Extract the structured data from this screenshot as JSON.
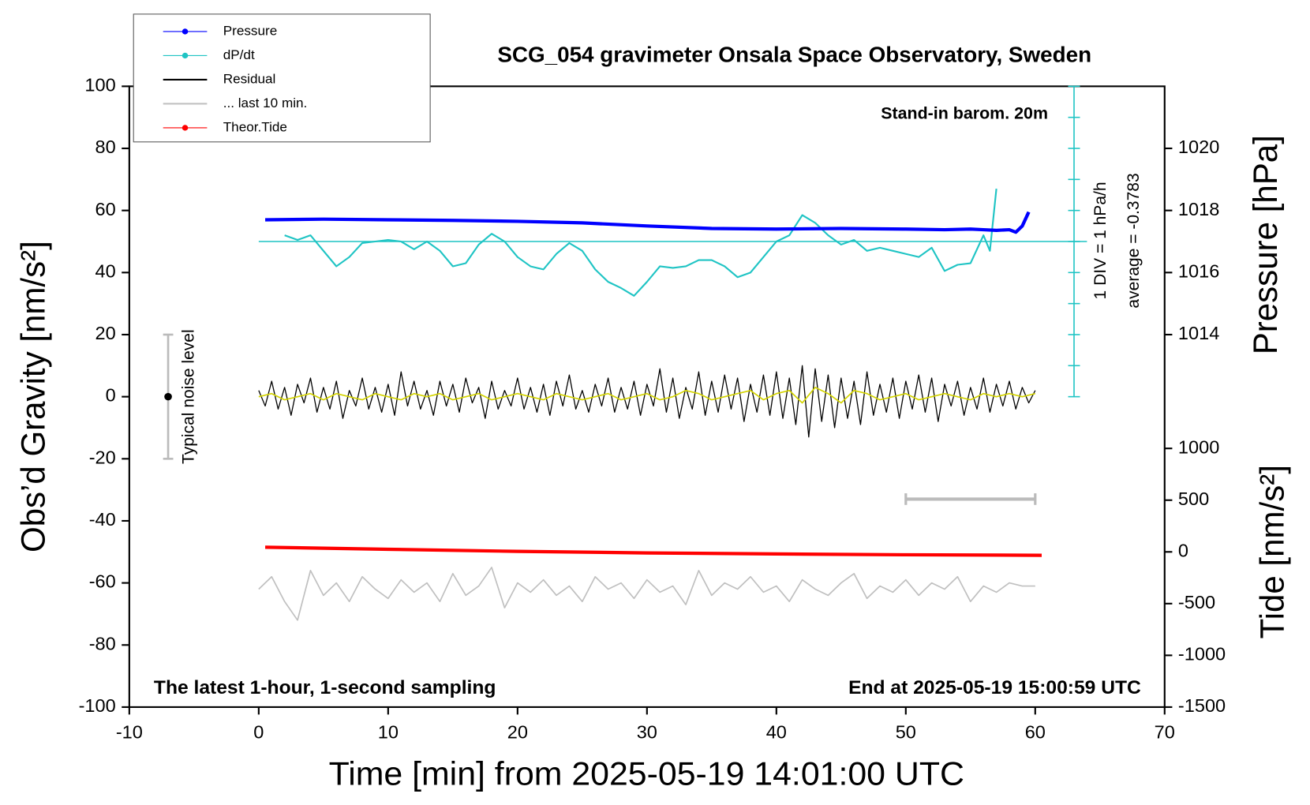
{
  "chart_data": {
    "type": "line",
    "title": "SCG_054 gravimeter Onsala Space Observatory, Sweden",
    "xlabel": "Time [min] from 2025-05-19 14:01:00 UTC",
    "ylabel": "Obs’d Gravity [nm/s²]",
    "y2label": "Pressure [hPa]",
    "y3label": "Tide [nm/s²]",
    "annotations": {
      "barometer": "Stand-in barom. 20m",
      "div": "1 DIV = 1 hPa/h",
      "average": "average = -0.3783",
      "sampling": "The latest 1-hour, 1-second sampling",
      "end": "End at 2025-05-19 15:00:59 UTC",
      "noise": "Typical noise level"
    },
    "xlim": [
      -10,
      70
    ],
    "xticks": [
      -10,
      0,
      10,
      20,
      30,
      40,
      50,
      60,
      70
    ],
    "ylim": [
      -100,
      100
    ],
    "yticks": [
      -100,
      -80,
      -60,
      -40,
      -20,
      0,
      20,
      40,
      60,
      80,
      100
    ],
    "y2lim": [
      1002,
      1022
    ],
    "y2ticks": [
      1014,
      1016,
      1018,
      1020
    ],
    "y3lim": [
      -1500,
      4500
    ],
    "y3ticks": [
      -1500,
      -1000,
      -500,
      0,
      500,
      1000
    ],
    "legend": "upper left",
    "noise_bar": {
      "x": -7,
      "range": [
        -20,
        20
      ],
      "center": 0
    },
    "scale_bar": {
      "x": [
        50,
        60
      ],
      "y": -33
    },
    "dpdt_axis": {
      "x": 63,
      "ticks": [
        0,
        10,
        20,
        30,
        40,
        50,
        60,
        70,
        80,
        90,
        100
      ],
      "baseline": 50,
      "baseline_x": [
        0,
        64
      ],
      "color": "#1fc4c4"
    },
    "series": [
      {
        "name": "Pressure",
        "color": "#0000ff",
        "marker": true,
        "axis": "y2",
        "width": 4,
        "x": [
          0.5,
          5,
          10,
          15,
          20,
          25,
          30,
          35,
          40,
          45,
          50,
          53,
          55,
          56,
          57,
          58,
          58.5,
          59,
          59.5
        ],
        "values": [
          1017.7,
          1017.72,
          1017.7,
          1017.68,
          1017.65,
          1017.6,
          1017.5,
          1017.42,
          1017.4,
          1017.42,
          1017.4,
          1017.38,
          1017.4,
          1017.38,
          1017.36,
          1017.38,
          1017.3,
          1017.5,
          1017.95
        ]
      },
      {
        "name": "dP/dt",
        "color": "#1fc4c4",
        "marker": true,
        "width": 2,
        "x": [
          2,
          3,
          4,
          5,
          6,
          7,
          8,
          9,
          10,
          11,
          12,
          13,
          14,
          15,
          16,
          17,
          18,
          19,
          20,
          21,
          22,
          23,
          24,
          25,
          26,
          27,
          28,
          29,
          30,
          31,
          32,
          33,
          34,
          35,
          36,
          37,
          38,
          39,
          40,
          41,
          42,
          43,
          44,
          45,
          46,
          47,
          48,
          49,
          50,
          51,
          52,
          53,
          54,
          55,
          56,
          56.5,
          57
        ],
        "values": [
          52,
          50.5,
          52,
          47,
          42,
          45,
          49.5,
          50,
          50.5,
          50,
          47.5,
          50,
          47,
          42,
          43,
          49,
          52.5,
          50,
          45,
          42,
          41,
          46,
          49.5,
          47,
          41,
          37,
          35,
          32.5,
          37,
          42,
          41.5,
          42,
          44,
          44,
          42,
          38.5,
          40,
          45,
          50,
          52,
          58.5,
          56,
          52,
          49,
          50.5,
          47,
          48,
          47,
          46,
          45,
          48,
          40.5,
          42.5,
          43,
          52,
          47,
          67
        ]
      },
      {
        "name": "Residual",
        "color": "#000000",
        "marker": false,
        "width": 1.2,
        "x": [
          0,
          0.5,
          1,
          1.5,
          2,
          2.5,
          3,
          3.5,
          4,
          4.5,
          5,
          5.5,
          6,
          6.5,
          7,
          7.5,
          8,
          8.5,
          9,
          9.5,
          10,
          10.5,
          11,
          11.5,
          12,
          12.5,
          13,
          13.5,
          14,
          14.5,
          15,
          15.5,
          16,
          16.5,
          17,
          17.5,
          18,
          18.5,
          19,
          19.5,
          20,
          20.5,
          21,
          21.5,
          22,
          22.5,
          23,
          23.5,
          24,
          24.5,
          25,
          25.5,
          26,
          26.5,
          27,
          27.5,
          28,
          28.5,
          29,
          29.5,
          30,
          30.5,
          31,
          31.5,
          32,
          32.5,
          33,
          33.5,
          34,
          34.5,
          35,
          35.5,
          36,
          36.5,
          37,
          37.5,
          38,
          38.5,
          39,
          39.5,
          40,
          40.5,
          41,
          41.5,
          42,
          42.5,
          43,
          43.5,
          44,
          44.5,
          45,
          45.5,
          46,
          46.5,
          47,
          47.5,
          48,
          48.5,
          49,
          49.5,
          50,
          50.5,
          51,
          51.5,
          52,
          52.5,
          53,
          53.5,
          54,
          54.5,
          55,
          55.5,
          56,
          56.5,
          57,
          57.5,
          58,
          58.5,
          59,
          59.5,
          60
        ],
        "values": [
          2,
          -3,
          5,
          -4,
          3,
          -6,
          4,
          -2,
          6,
          -5,
          3,
          -4,
          5,
          -7,
          2,
          -3,
          6,
          -4,
          3,
          -5,
          4,
          -6,
          8,
          -3,
          5,
          -4,
          2,
          -6,
          5,
          -3,
          4,
          -5,
          6,
          -2,
          3,
          -7,
          5,
          -4,
          2,
          -3,
          6,
          -4,
          3,
          -5,
          4,
          -6,
          5,
          -3,
          7,
          -4,
          2,
          -5,
          4,
          -3,
          6,
          -5,
          3,
          -4,
          5,
          -6,
          4,
          -3,
          9,
          -5,
          6,
          -7,
          3,
          -4,
          8,
          -6,
          5,
          -5,
          7,
          -4,
          6,
          -8,
          4,
          -5,
          7,
          -6,
          8,
          -7,
          6,
          -9,
          10,
          -13,
          9,
          -8,
          7,
          -10,
          6,
          -7,
          5,
          -9,
          8,
          -6,
          4,
          -5,
          6,
          -7,
          5,
          -4,
          7,
          -5,
          6,
          -8,
          4,
          -3,
          5,
          -6,
          3,
          -4,
          6,
          -5,
          4,
          -3,
          5,
          -4,
          3,
          -2,
          2
        ]
      },
      {
        "name": "... last 10 min.",
        "color": "#c0c0c0",
        "marker": false,
        "width": 1.6,
        "x": [
          0,
          1,
          2,
          3,
          4,
          5,
          6,
          7,
          8,
          9,
          10,
          11,
          12,
          13,
          14,
          15,
          16,
          17,
          18,
          19,
          20,
          21,
          22,
          23,
          24,
          25,
          26,
          27,
          28,
          29,
          30,
          31,
          32,
          33,
          34,
          35,
          36,
          37,
          38,
          39,
          40,
          41,
          42,
          43,
          44,
          45,
          46,
          47,
          48,
          49,
          50,
          51,
          52,
          53,
          54,
          55,
          56,
          57,
          58,
          59,
          60
        ],
        "values": [
          -62,
          -58,
          -66,
          -72,
          -56,
          -64,
          -60,
          -66,
          -58,
          -62,
          -65,
          -59,
          -63,
          -60,
          -66,
          -57,
          -64,
          -61,
          -55,
          -68,
          -60,
          -63,
          -59,
          -64,
          -61,
          -66,
          -58,
          -62,
          -60,
          -65,
          -59,
          -63,
          -61,
          -67,
          -56,
          -64,
          -60,
          -62,
          -58,
          -63,
          -61,
          -66,
          -59,
          -62,
          -64,
          -60,
          -57,
          -65,
          -61,
          -63,
          -59,
          -64,
          -60,
          -62,
          -58,
          -66,
          -61,
          -63,
          -60,
          -61,
          -61
        ]
      },
      {
        "name": "Theor.Tide",
        "color": "#ff0000",
        "marker": true,
        "axis": "y3",
        "width": 4,
        "x": [
          0.5,
          10,
          20,
          30,
          40,
          50,
          60.5
        ],
        "values": [
          45,
          25,
          5,
          -10,
          -20,
          -28,
          -33
        ]
      },
      {
        "color": "#d4d400",
        "width": 1.6,
        "x": [
          0,
          1,
          2,
          3,
          4,
          5,
          6,
          7,
          8,
          9,
          10,
          11,
          12,
          13,
          14,
          15,
          16,
          17,
          18,
          19,
          20,
          21,
          22,
          23,
          24,
          25,
          26,
          27,
          28,
          29,
          30,
          31,
          32,
          33,
          34,
          35,
          36,
          37,
          38,
          39,
          40,
          41,
          42,
          43,
          44,
          45,
          46,
          47,
          48,
          49,
          50,
          51,
          52,
          53,
          54,
          55,
          56,
          57,
          58,
          59,
          60
        ],
        "values": [
          0,
          1,
          -1,
          0,
          1,
          -1,
          1,
          0,
          -1,
          1,
          0,
          -1,
          1,
          0,
          1,
          -1,
          0,
          1,
          -1,
          0,
          1,
          0,
          -1,
          1,
          0,
          -1,
          0,
          1,
          -1,
          0,
          1,
          -1,
          0,
          2,
          1,
          -1,
          0,
          1,
          2,
          -1,
          1,
          2,
          -2,
          3,
          1,
          -2,
          2,
          1,
          -1,
          0,
          1,
          -1,
          0,
          1,
          0,
          -1,
          1,
          0,
          1,
          0,
          1
        ]
      }
    ]
  }
}
